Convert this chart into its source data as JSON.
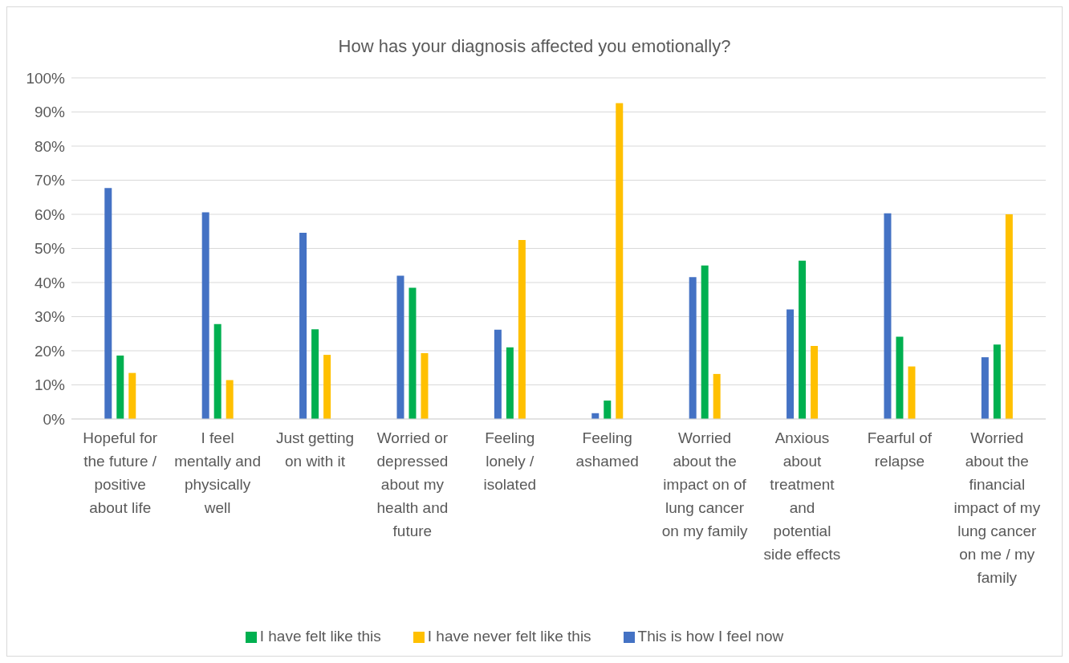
{
  "chart_data": {
    "type": "bar",
    "title": "How has your diagnosis affected you emotionally?",
    "categories": [
      "Hopeful for the future / positive about life",
      "I feel mentally and physically well",
      "Just getting on with it",
      "Worried or depressed about my health and future",
      "Feeling lonely / isolated",
      "Feeling ashamed",
      "Worried about the impact on of lung cancer on my family",
      "Anxious about treatment and potential side effects",
      "Fearful of relapse",
      "Worried about the financial impact of my lung cancer on me / my family"
    ],
    "series": [
      {
        "name": "This is how I feel now",
        "color": "#4472c4",
        "values": [
          67.7,
          60.6,
          54.6,
          42.0,
          26.2,
          1.7,
          41.6,
          32.1,
          60.3,
          18.1
        ]
      },
      {
        "name": "I have felt like this",
        "color": "#00b050",
        "values": [
          18.6,
          27.8,
          26.3,
          38.5,
          21.0,
          5.4,
          45.0,
          46.4,
          24.1,
          21.8
        ]
      },
      {
        "name": "I have never felt like this",
        "color": "#ffc000",
        "values": [
          13.5,
          11.4,
          18.8,
          19.3,
          52.5,
          92.6,
          13.2,
          21.4,
          15.4,
          60.0
        ]
      }
    ],
    "ylim": [
      0,
      100
    ],
    "yticks": [
      {
        "value": 0,
        "label": "0%"
      },
      {
        "value": 10,
        "label": "10%"
      },
      {
        "value": 20,
        "label": "20%"
      },
      {
        "value": 30,
        "label": "30%"
      },
      {
        "value": 40,
        "label": "40%"
      },
      {
        "value": 50,
        "label": "50%"
      },
      {
        "value": 60,
        "label": "60%"
      },
      {
        "value": 70,
        "label": "70%"
      },
      {
        "value": 80,
        "label": "80%"
      },
      {
        "value": 90,
        "label": "90%"
      },
      {
        "value": 100,
        "label": "100%"
      }
    ],
    "grid": "y",
    "legend": "bottom"
  }
}
